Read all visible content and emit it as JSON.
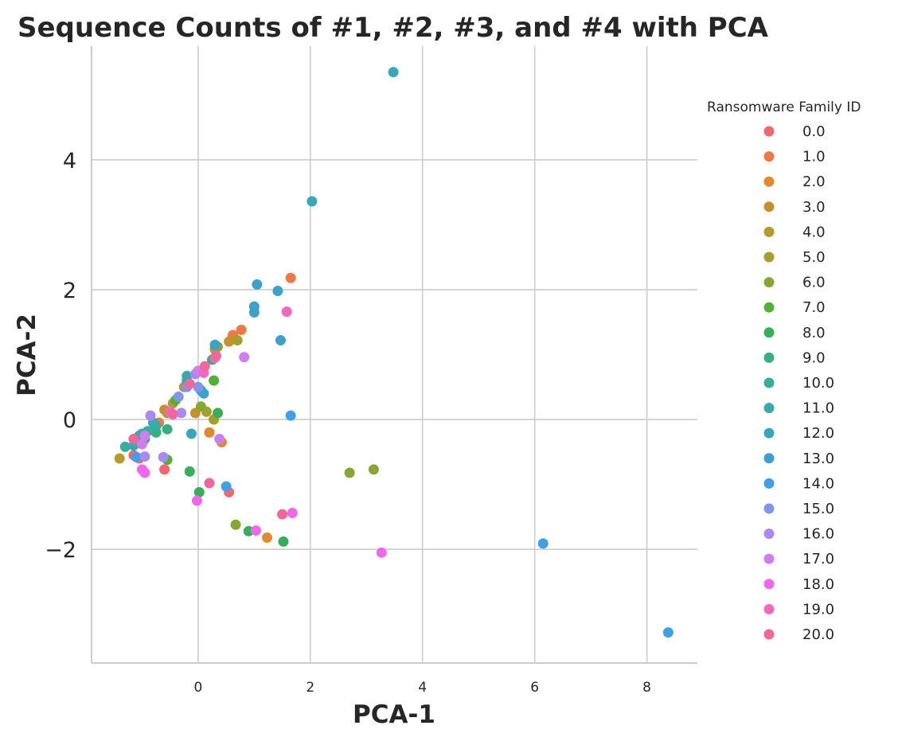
{
  "chart_data": {
    "type": "scatter",
    "title": "Sequence Counts of #1, #2, #3, and #4 with PCA",
    "xlabel": "PCA-1",
    "ylabel": "PCA-2",
    "xlim": [
      -1.9,
      8.9
    ],
    "ylim": [
      -3.75,
      5.75
    ],
    "xticks": [
      0,
      2,
      4,
      6,
      8
    ],
    "xtick_labels": [
      "0",
      "2",
      "4",
      "6",
      "8"
    ],
    "yticks": [
      -2,
      0,
      2,
      4
    ],
    "ytick_labels": [
      "−2",
      "0",
      "2",
      "4"
    ],
    "grid": true,
    "legend": {
      "title": "Ransomware Family ID",
      "placement": "right"
    },
    "series": [
      {
        "name": "0.0",
        "color": "#f0676f",
        "points": [
          [
            -0.6,
            -0.77
          ],
          [
            0.55,
            -1.12
          ],
          [
            -1.15,
            -0.55
          ],
          [
            -1.05,
            -0.6
          ]
        ]
      },
      {
        "name": "1.0",
        "color": "#f07844",
        "points": [
          [
            1.65,
            2.18
          ],
          [
            0.77,
            1.38
          ],
          [
            0.62,
            1.3
          ],
          [
            -0.7,
            -0.05
          ]
        ]
      },
      {
        "name": "2.0",
        "color": "#e08a2d",
        "points": [
          [
            1.23,
            -1.82
          ],
          [
            0.42,
            -0.35
          ],
          [
            0.2,
            -0.2
          ]
        ]
      },
      {
        "name": "3.0",
        "color": "#c8902a",
        "points": [
          [
            -0.05,
            0.1
          ],
          [
            -0.25,
            0.5
          ],
          [
            -0.6,
            0.15
          ],
          [
            0.55,
            1.2
          ]
        ]
      },
      {
        "name": "4.0",
        "color": "#b59a2c",
        "points": [
          [
            -1.4,
            -0.6
          ],
          [
            -0.55,
            0.1
          ],
          [
            0.3,
            1.1
          ],
          [
            -0.45,
            0.25
          ]
        ]
      },
      {
        "name": "5.0",
        "color": "#a3a02c",
        "points": [
          [
            0.7,
            1.22
          ],
          [
            0.28,
            0.0
          ],
          [
            0.15,
            0.12
          ],
          [
            0.3,
            1.08
          ]
        ]
      },
      {
        "name": "6.0",
        "color": "#86a831",
        "points": [
          [
            2.7,
            -0.82
          ],
          [
            3.13,
            -0.77
          ],
          [
            0.67,
            -1.62
          ],
          [
            0.05,
            0.2
          ],
          [
            0.35,
            1.12
          ]
        ]
      },
      {
        "name": "7.0",
        "color": "#50b135",
        "points": [
          [
            0.28,
            0.6
          ],
          [
            -0.55,
            -0.62
          ],
          [
            -0.4,
            0.3
          ]
        ]
      },
      {
        "name": "8.0",
        "color": "#35b058",
        "points": [
          [
            0.9,
            -1.72
          ],
          [
            1.52,
            -1.88
          ],
          [
            -0.15,
            -0.8
          ],
          [
            0.02,
            -1.12
          ],
          [
            0.35,
            0.1
          ]
        ]
      },
      {
        "name": "9.0",
        "color": "#35b080",
        "points": [
          [
            -0.55,
            -0.15
          ],
          [
            -0.75,
            -0.2
          ],
          [
            -0.95,
            -0.3
          ],
          [
            0.25,
            0.92
          ],
          [
            -0.2,
            0.55
          ]
        ]
      },
      {
        "name": "10.0",
        "color": "#36ae99",
        "points": [
          [
            -1.3,
            -0.42
          ],
          [
            -0.9,
            -0.18
          ],
          [
            -1.05,
            -0.25
          ],
          [
            -0.75,
            -0.1
          ],
          [
            -0.2,
            0.6
          ]
        ]
      },
      {
        "name": "11.0",
        "color": "#38aaac",
        "points": [
          [
            -1.15,
            -0.4
          ],
          [
            -1.0,
            -0.22
          ],
          [
            -0.8,
            -0.05
          ],
          [
            -0.2,
            0.67
          ]
        ]
      },
      {
        "name": "12.0",
        "color": "#39a7bb",
        "points": [
          [
            3.48,
            5.35
          ],
          [
            2.03,
            3.36
          ],
          [
            -0.12,
            -0.22
          ]
        ]
      },
      {
        "name": "13.0",
        "color": "#3ba3cb",
        "points": [
          [
            1.05,
            2.08
          ],
          [
            1.0,
            1.74
          ],
          [
            1.0,
            1.65
          ],
          [
            1.42,
            1.98
          ],
          [
            1.47,
            1.22
          ],
          [
            0.3,
            1.15
          ],
          [
            0.1,
            0.4
          ],
          [
            0.05,
            0.45
          ]
        ]
      },
      {
        "name": "14.0",
        "color": "#3fa0e8",
        "points": [
          [
            6.15,
            -1.91
          ],
          [
            8.38,
            -3.28
          ],
          [
            1.65,
            0.06
          ],
          [
            0.5,
            -1.03
          ],
          [
            -1.1,
            -0.58
          ]
        ]
      },
      {
        "name": "15.0",
        "color": "#7f96ec",
        "points": [
          [
            -0.35,
            0.35
          ],
          [
            0.0,
            0.5
          ],
          [
            -0.2,
            0.5
          ]
        ]
      },
      {
        "name": "16.0",
        "color": "#a88af0",
        "points": [
          [
            -0.85,
            0.06
          ],
          [
            -0.95,
            -0.57
          ],
          [
            -0.62,
            -0.58
          ],
          [
            -0.3,
            0.1
          ],
          [
            -0.05,
            0.7
          ]
        ]
      },
      {
        "name": "17.0",
        "color": "#cf7ef0",
        "points": [
          [
            0.82,
            0.96
          ],
          [
            -0.95,
            -0.25
          ],
          [
            -1.0,
            -0.38
          ],
          [
            0.0,
            0.75
          ],
          [
            0.38,
            -0.3
          ]
        ]
      },
      {
        "name": "18.0",
        "color": "#f066ec",
        "points": [
          [
            3.27,
            -2.05
          ],
          [
            1.68,
            -1.44
          ],
          [
            1.03,
            -1.71
          ],
          [
            -0.02,
            -1.25
          ],
          [
            -0.95,
            -0.82
          ],
          [
            -1.0,
            -0.77
          ]
        ]
      },
      {
        "name": "19.0",
        "color": "#f267c2",
        "points": [
          [
            1.58,
            1.66
          ],
          [
            0.3,
            0.95
          ],
          [
            0.1,
            0.72
          ],
          [
            -0.5,
            0.12
          ]
        ]
      },
      {
        "name": "20.0",
        "color": "#f2679b",
        "points": [
          [
            1.5,
            -1.46
          ],
          [
            0.2,
            -0.98
          ],
          [
            -1.15,
            -0.3
          ],
          [
            -0.15,
            0.55
          ],
          [
            0.12,
            0.82
          ],
          [
            0.32,
            0.98
          ],
          [
            -0.45,
            0.08
          ]
        ]
      }
    ]
  }
}
